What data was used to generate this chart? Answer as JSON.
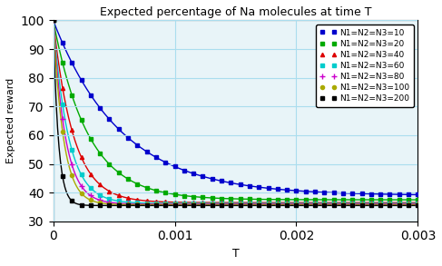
{
  "title": "Expected percentage of Na molecules at time T",
  "xlabel": "T",
  "ylabel": "Expected reward",
  "xlim": [
    0,
    0.003
  ],
  "ylim": [
    30,
    100
  ],
  "yticks": [
    30,
    40,
    50,
    60,
    70,
    80,
    90,
    100
  ],
  "xticks": [
    0,
    0.001,
    0.002,
    0.003
  ],
  "series": [
    {
      "N": 10,
      "color": "#0000cc",
      "marker": "s",
      "label": "N1=N2=N3=10",
      "asymptote": 39.0,
      "rate": 1800
    },
    {
      "N": 20,
      "color": "#00aa00",
      "marker": "s",
      "label": "N1=N2=N3=20",
      "asymptote": 37.5,
      "rate": 3500
    },
    {
      "N": 40,
      "color": "#dd0000",
      "marker": "^",
      "label": "N1=N2=N3=40",
      "asymptote": 36.5,
      "rate": 6000
    },
    {
      "N": 60,
      "color": "#00cccc",
      "marker": "s",
      "label": "N1=N2=N3=60",
      "asymptote": 36.2,
      "rate": 8000
    },
    {
      "N": 80,
      "color": "#cc00cc",
      "marker": "+",
      "label": "N1=N2=N3=80",
      "asymptote": 36.0,
      "rate": 10000
    },
    {
      "N": 100,
      "color": "#aaaa00",
      "marker": "o",
      "label": "N1=N2=N3=100",
      "asymptote": 35.8,
      "rate": 12000
    },
    {
      "N": 200,
      "color": "#000000",
      "marker": "s",
      "label": "N1=N2=N3=200",
      "asymptote": 35.5,
      "rate": 24000
    }
  ],
  "background_color": "#e8f4f8",
  "grid_color": "#aaddee",
  "figsize": [
    4.87,
    2.93
  ],
  "dpi": 100
}
